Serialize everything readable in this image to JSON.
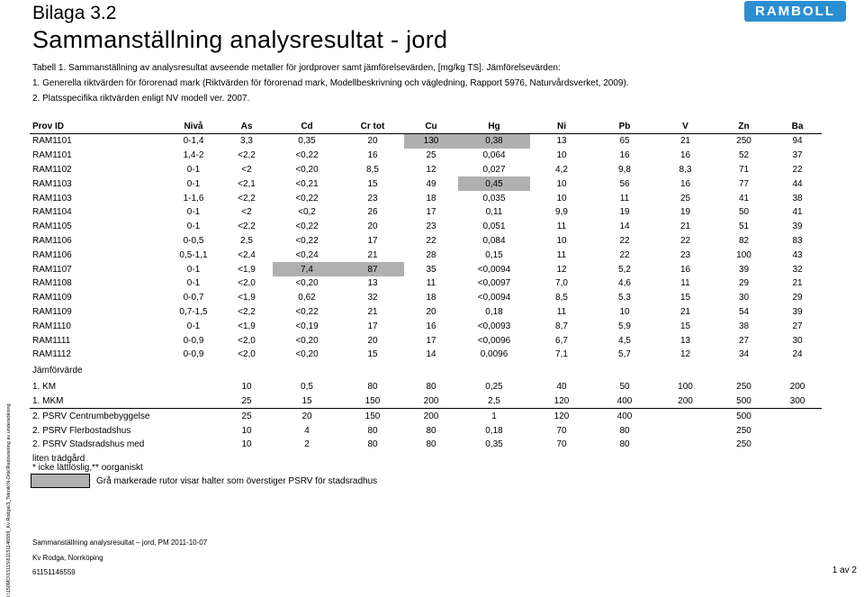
{
  "header": {
    "appendix": "Bilaga 3.2",
    "title": "Sammanställning analysresultat - jord",
    "logo_text": "RAMBOLL"
  },
  "intro": {
    "line1": "Tabell 1. Sammanställning av analysresultat avseende metaller för jordprover samt jämförelsevärden, [mg/kg TS]. Jämförelsevärden:",
    "line2": "1. Generella riktvärden för förorenad mark (Riktvärden för förorenad mark, Modellbeskrivning och vägledning, Rapport 5976, Naturvårdsverket, 2009).",
    "line3": "2. Platsspecifika riktvärden enligt NV modell ver. 2007."
  },
  "table": {
    "headers": [
      "Prov ID",
      "Nivå",
      "As",
      "Cd",
      "Cr tot",
      "Cu",
      "Hg",
      "Ni",
      "Pb",
      "V",
      "Zn",
      "Ba"
    ],
    "rows": [
      [
        "RAM1101",
        "0-1,4",
        "3,3",
        "0,35",
        "20",
        "130",
        "0,38",
        "13",
        "65",
        "21",
        "250",
        "94"
      ],
      [
        "RAM1101",
        "1,4-2",
        "<2,2",
        "<0,22",
        "16",
        "25",
        "0,064",
        "10",
        "16",
        "16",
        "52",
        "37"
      ],
      [
        "RAM1102",
        "0-1",
        "<2",
        "<0,20",
        "8,5",
        "12",
        "0,027",
        "4,2",
        "9,8",
        "8,3",
        "71",
        "22"
      ],
      [
        "RAM1103",
        "0-1",
        "<2,1",
        "<0,21",
        "15",
        "49",
        "0,45",
        "10",
        "56",
        "16",
        "77",
        "44"
      ],
      [
        "RAM1103",
        "1-1,6",
        "<2,2",
        "<0,22",
        "23",
        "18",
        "0,035",
        "10",
        "11",
        "25",
        "41",
        "38"
      ],
      [
        "RAM1104",
        "0-1",
        "<2",
        "<0,2",
        "26",
        "17",
        "0,11",
        "9,9",
        "19",
        "19",
        "50",
        "41"
      ],
      [
        "RAM1105",
        "0-1",
        "<2,2",
        "<0,22",
        "20",
        "23",
        "0,051",
        "11",
        "14",
        "21",
        "51",
        "39"
      ],
      [
        "RAM1106",
        "0-0,5",
        "2,5",
        "<0,22",
        "17",
        "22",
        "0,084",
        "10",
        "22",
        "22",
        "82",
        "83"
      ],
      [
        "RAM1106",
        "0,5-1,1",
        "<2,4",
        "<0,24",
        "21",
        "28",
        "0,15",
        "11",
        "22",
        "23",
        "100",
        "43"
      ],
      [
        "RAM1107",
        "0-1",
        "<1,9",
        "7,4",
        "87",
        "35",
        "<0,0094",
        "12",
        "5,2",
        "16",
        "39",
        "32"
      ],
      [
        "RAM1108",
        "0-1",
        "<2,0",
        "<0,20",
        "13",
        "11",
        "<0,0097",
        "7,0",
        "4,6",
        "11",
        "29",
        "21"
      ],
      [
        "RAM1109",
        "0-0,7",
        "<1,9",
        "0,62",
        "32",
        "18",
        "<0,0094",
        "8,5",
        "5,3",
        "15",
        "30",
        "29"
      ],
      [
        "RAM1109",
        "0,7-1,5",
        "<2,2",
        "<0,22",
        "21",
        "20",
        "0,18",
        "11",
        "10",
        "21",
        "54",
        "39"
      ],
      [
        "RAM1110",
        "0-1",
        "<1,9",
        "<0,19",
        "17",
        "16",
        "<0,0093",
        "8,7",
        "5,9",
        "15",
        "38",
        "27"
      ],
      [
        "RAM1111",
        "0-0,9",
        "<2,0",
        "<0,20",
        "20",
        "17",
        "<0,0096",
        "6,7",
        "4,5",
        "13",
        "27",
        "30"
      ],
      [
        "RAM1112",
        "0-0,9",
        "<2,0",
        "<0,20",
        "15",
        "14",
        "0,0096",
        "7,1",
        "5,7",
        "12",
        "34",
        "24"
      ]
    ],
    "grey_cells": [
      [
        0,
        5
      ],
      [
        0,
        6
      ],
      [
        3,
        6
      ],
      [
        9,
        3
      ],
      [
        9,
        4
      ]
    ],
    "comparison_label": "Jämförvärde",
    "comparison_rows": [
      [
        "1. KM",
        "",
        "10",
        "0,5",
        "80",
        "80",
        "0,25",
        "40",
        "50",
        "100",
        "250",
        "200"
      ],
      [
        "1. MKM",
        "",
        "25",
        "15",
        "150",
        "200",
        "2,5",
        "120",
        "400",
        "200",
        "500",
        "300"
      ],
      [
        "2. PSRV Centrumbebyggelse",
        "",
        "25",
        "20",
        "150",
        "200",
        "1",
        "120",
        "400",
        "",
        "500",
        ""
      ],
      [
        "2. PSRV Flerbostadshus",
        "",
        "10",
        "4",
        "80",
        "80",
        "0,18",
        "70",
        "80",
        "",
        "250",
        ""
      ],
      [
        "2. PSRV Stadsradshus med",
        "",
        "10",
        "2",
        "80",
        "80",
        "0,35",
        "70",
        "80",
        "",
        "250",
        ""
      ],
      [
        "liten trädgård",
        "",
        "",
        "",
        "",
        "",
        "",
        "",
        "",
        "",
        "",
        ""
      ]
    ]
  },
  "notes": {
    "footnote": "* icke lättlöslig,** oorganiskt",
    "legend": "Grå markerade rutor visar halter som överstiger PSRV för stadsradhus"
  },
  "footer": {
    "line1": "Sammanställning analysresultat – jord, PM 2011-10-07",
    "line2": "Kv Rodga, Norrköping",
    "line3": "61151146559",
    "page": "1 av 2",
    "side_path": "I:\\150MO\\15115\\61151146559_Kv Rodga\\3_Teknik\\N-Dok\\Redovisning av undersökning"
  }
}
